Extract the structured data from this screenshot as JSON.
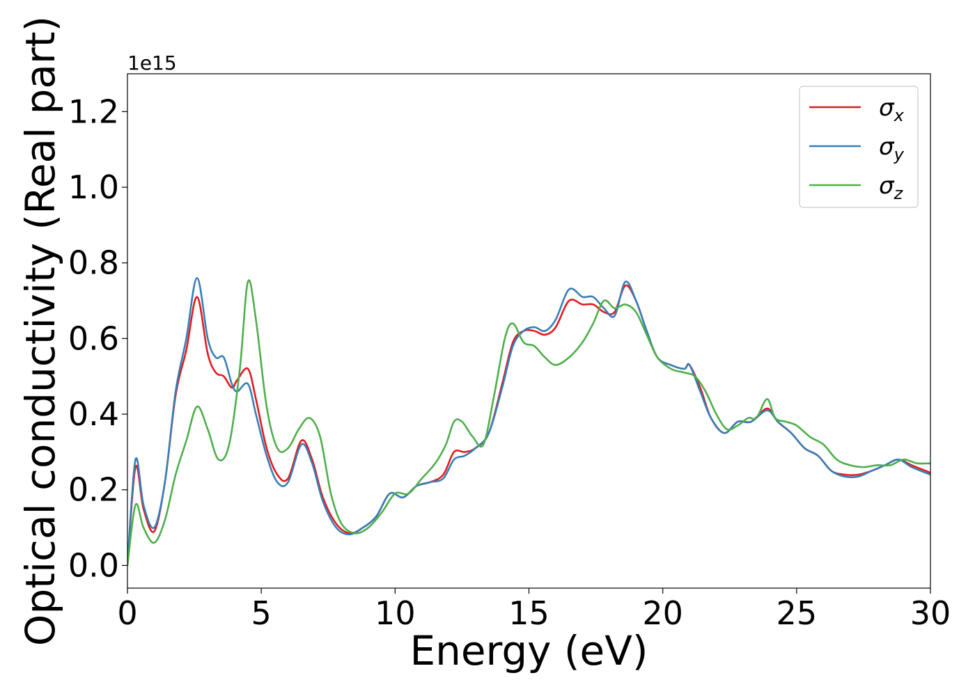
{
  "chart_data": {
    "type": "line",
    "title": "",
    "xlabel": "Energy (eV)",
    "ylabel": "Optical conductivity (Real part)",
    "y_offset_label": "1e15",
    "xlim": [
      0,
      30
    ],
    "ylim": [
      -0.06,
      1.3
    ],
    "xticks": [
      0,
      5,
      10,
      15,
      20,
      25,
      30
    ],
    "xtick_labels": [
      "0",
      "5",
      "10",
      "15",
      "20",
      "25",
      "30"
    ],
    "yticks": [
      0.0,
      0.2,
      0.4,
      0.6,
      0.8,
      1.0,
      1.2
    ],
    "ytick_labels": [
      "0.0",
      "0.2",
      "0.4",
      "0.6",
      "0.8",
      "1.0",
      "1.2"
    ],
    "grid": false,
    "legend_position": "top-right",
    "series": [
      {
        "name": "σx",
        "legend_symbol": "σ",
        "legend_sub": "x",
        "color": "#e41a1c",
        "x": [
          0,
          0.3,
          0.6,
          1.0,
          1.4,
          1.8,
          2.2,
          2.6,
          3.0,
          3.3,
          3.6,
          3.9,
          4.1,
          4.5,
          4.8,
          5.2,
          5.6,
          6.0,
          6.5,
          6.9,
          7.3,
          7.8,
          8.3,
          8.8,
          9.3,
          9.8,
          10.3,
          10.8,
          11.3,
          11.8,
          12.2,
          12.6,
          13.0,
          13.5,
          14.0,
          14.4,
          14.8,
          15.2,
          15.6,
          16.0,
          16.5,
          17.0,
          17.4,
          17.8,
          18.2,
          18.6,
          19.0,
          19.4,
          19.8,
          20.3,
          20.8,
          21.0,
          21.4,
          21.8,
          22.3,
          22.8,
          23.3,
          23.9,
          24.3,
          24.8,
          25.3,
          25.8,
          26.3,
          26.8,
          27.3,
          27.8,
          28.3,
          28.8,
          29.3,
          30.0
        ],
        "values": [
          0.0,
          0.26,
          0.15,
          0.09,
          0.22,
          0.45,
          0.57,
          0.71,
          0.56,
          0.51,
          0.5,
          0.47,
          0.49,
          0.52,
          0.44,
          0.31,
          0.24,
          0.23,
          0.33,
          0.28,
          0.18,
          0.11,
          0.085,
          0.1,
          0.13,
          0.19,
          0.18,
          0.21,
          0.22,
          0.24,
          0.3,
          0.3,
          0.31,
          0.35,
          0.48,
          0.59,
          0.62,
          0.62,
          0.61,
          0.63,
          0.7,
          0.69,
          0.69,
          0.67,
          0.67,
          0.74,
          0.7,
          0.62,
          0.55,
          0.53,
          0.52,
          0.53,
          0.47,
          0.39,
          0.35,
          0.38,
          0.38,
          0.415,
          0.38,
          0.35,
          0.31,
          0.29,
          0.25,
          0.24,
          0.24,
          0.25,
          0.265,
          0.28,
          0.265,
          0.245
        ]
      },
      {
        "name": "σy",
        "legend_symbol": "σ",
        "legend_sub": "y",
        "color": "#377eb8",
        "x": [
          0,
          0.3,
          0.6,
          1.0,
          1.4,
          1.8,
          2.2,
          2.6,
          3.0,
          3.3,
          3.6,
          3.9,
          4.1,
          4.5,
          4.8,
          5.2,
          5.6,
          6.0,
          6.5,
          6.9,
          7.3,
          7.8,
          8.3,
          8.8,
          9.3,
          9.8,
          10.3,
          10.8,
          11.3,
          11.8,
          12.2,
          12.6,
          13.0,
          13.5,
          14.0,
          14.4,
          14.8,
          15.2,
          15.6,
          16.0,
          16.5,
          17.0,
          17.4,
          17.8,
          18.2,
          18.6,
          19.0,
          19.4,
          19.8,
          20.3,
          20.8,
          21.0,
          21.4,
          21.8,
          22.3,
          22.8,
          23.3,
          23.9,
          24.3,
          24.8,
          25.3,
          25.8,
          26.3,
          26.8,
          27.3,
          27.8,
          28.3,
          28.8,
          29.3,
          30.0
        ],
        "values": [
          0.0,
          0.28,
          0.16,
          0.1,
          0.22,
          0.46,
          0.6,
          0.76,
          0.6,
          0.55,
          0.55,
          0.48,
          0.46,
          0.48,
          0.4,
          0.29,
          0.22,
          0.22,
          0.32,
          0.27,
          0.17,
          0.1,
          0.082,
          0.1,
          0.13,
          0.19,
          0.18,
          0.21,
          0.22,
          0.23,
          0.28,
          0.29,
          0.31,
          0.35,
          0.47,
          0.58,
          0.62,
          0.63,
          0.62,
          0.65,
          0.73,
          0.71,
          0.71,
          0.68,
          0.66,
          0.75,
          0.7,
          0.62,
          0.55,
          0.53,
          0.52,
          0.53,
          0.46,
          0.39,
          0.35,
          0.38,
          0.38,
          0.41,
          0.38,
          0.35,
          0.31,
          0.29,
          0.25,
          0.235,
          0.235,
          0.25,
          0.265,
          0.28,
          0.26,
          0.24
        ]
      },
      {
        "name": "σz",
        "legend_symbol": "σ",
        "legend_sub": "z",
        "color": "#4daf4a",
        "x": [
          0,
          0.3,
          0.6,
          1.0,
          1.4,
          1.8,
          2.2,
          2.6,
          3.0,
          3.4,
          3.8,
          4.2,
          4.5,
          4.8,
          5.2,
          5.6,
          6.0,
          6.4,
          6.8,
          7.2,
          7.6,
          8.0,
          8.5,
          9.0,
          9.5,
          10.0,
          10.5,
          11.0,
          11.5,
          11.9,
          12.2,
          12.5,
          12.9,
          13.3,
          13.7,
          14.1,
          14.4,
          14.8,
          15.2,
          15.6,
          16.0,
          16.5,
          17.0,
          17.4,
          17.8,
          18.2,
          18.6,
          19.0,
          19.4,
          19.8,
          20.3,
          20.8,
          21.2,
          21.6,
          22.0,
          22.4,
          22.8,
          23.2,
          23.5,
          23.9,
          24.2,
          24.6,
          25.0,
          25.5,
          26.0,
          26.5,
          27.0,
          27.5,
          28.0,
          28.5,
          29.0,
          29.5,
          30.0
        ],
        "values": [
          0.0,
          0.16,
          0.1,
          0.06,
          0.12,
          0.24,
          0.33,
          0.42,
          0.36,
          0.28,
          0.32,
          0.52,
          0.75,
          0.65,
          0.42,
          0.31,
          0.31,
          0.36,
          0.39,
          0.34,
          0.19,
          0.11,
          0.085,
          0.1,
          0.14,
          0.19,
          0.19,
          0.23,
          0.27,
          0.32,
          0.38,
          0.38,
          0.34,
          0.32,
          0.45,
          0.6,
          0.64,
          0.59,
          0.58,
          0.55,
          0.53,
          0.55,
          0.59,
          0.64,
          0.7,
          0.68,
          0.69,
          0.67,
          0.61,
          0.55,
          0.52,
          0.51,
          0.5,
          0.46,
          0.4,
          0.36,
          0.37,
          0.39,
          0.39,
          0.44,
          0.39,
          0.38,
          0.37,
          0.34,
          0.32,
          0.28,
          0.265,
          0.26,
          0.265,
          0.265,
          0.28,
          0.27,
          0.27
        ]
      }
    ]
  }
}
